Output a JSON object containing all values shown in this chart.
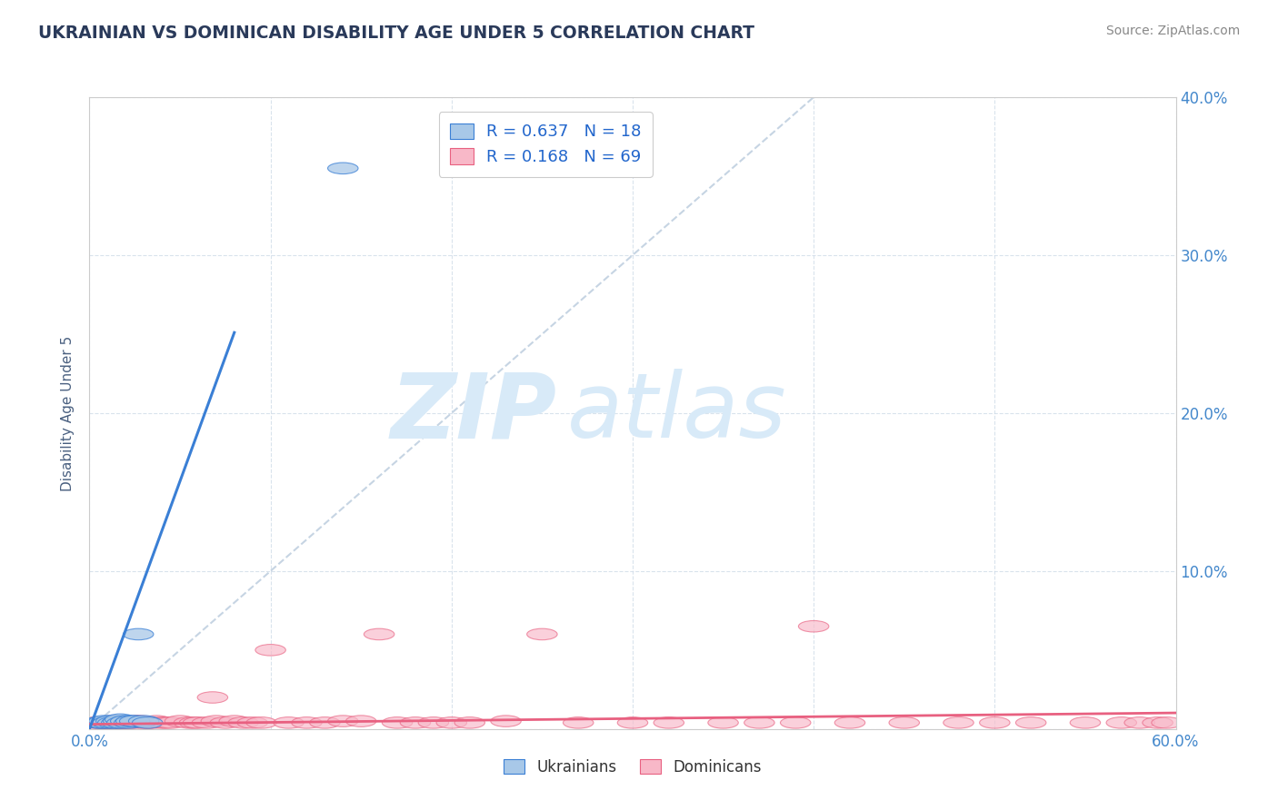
{
  "title": "UKRAINIAN VS DOMINICAN DISABILITY AGE UNDER 5 CORRELATION CHART",
  "source_text": "Source: ZipAtlas.com",
  "ylabel": "Disability Age Under 5",
  "xlim": [
    0.0,
    0.6
  ],
  "ylim": [
    0.0,
    0.4
  ],
  "xticks": [
    0.0,
    0.1,
    0.2,
    0.3,
    0.4,
    0.5,
    0.6
  ],
  "yticks": [
    0.0,
    0.1,
    0.2,
    0.3,
    0.4
  ],
  "xticklabels": [
    "0.0%",
    "",
    "",
    "",
    "",
    "",
    "60.0%"
  ],
  "yticklabels_right": [
    "",
    "10.0%",
    "20.0%",
    "30.0%",
    "40.0%"
  ],
  "ukrainian_color": "#a8c8e8",
  "dominican_color": "#f8b8c8",
  "ukr_line_color": "#3a7fd5",
  "dom_line_color": "#e86080",
  "ref_line_color": "#c0d0e0",
  "ukr_R": 0.637,
  "ukr_N": 18,
  "dom_R": 0.168,
  "dom_N": 69,
  "watermark_zip": "ZIP",
  "watermark_atlas": "atlas",
  "watermark_color": "#d8eaf8",
  "title_color": "#2a3a5a",
  "axis_label_color": "#4a6080",
  "tick_color_x": "#4488cc",
  "tick_color_y": "#4488cc",
  "legend_R_color": "#2266cc",
  "grid_color": "#d0dce8",
  "ukr_points_x": [
    0.005,
    0.007,
    0.008,
    0.01,
    0.012,
    0.013,
    0.015,
    0.016,
    0.017,
    0.018,
    0.02,
    0.022,
    0.023,
    0.025,
    0.027,
    0.03,
    0.032,
    0.14
  ],
  "ukr_points_y": [
    0.004,
    0.004,
    0.005,
    0.004,
    0.005,
    0.004,
    0.004,
    0.005,
    0.006,
    0.004,
    0.005,
    0.004,
    0.005,
    0.005,
    0.06,
    0.005,
    0.004,
    0.355
  ],
  "dom_points_x": [
    0.003,
    0.005,
    0.007,
    0.008,
    0.01,
    0.01,
    0.012,
    0.013,
    0.015,
    0.016,
    0.017,
    0.018,
    0.02,
    0.022,
    0.023,
    0.025,
    0.027,
    0.028,
    0.03,
    0.032,
    0.033,
    0.035,
    0.037,
    0.04,
    0.042,
    0.045,
    0.05,
    0.055,
    0.058,
    0.06,
    0.065,
    0.068,
    0.07,
    0.075,
    0.08,
    0.085,
    0.09,
    0.095,
    0.1,
    0.11,
    0.12,
    0.13,
    0.14,
    0.15,
    0.16,
    0.17,
    0.18,
    0.19,
    0.2,
    0.21,
    0.23,
    0.25,
    0.27,
    0.3,
    0.32,
    0.35,
    0.37,
    0.39,
    0.4,
    0.42,
    0.45,
    0.48,
    0.5,
    0.52,
    0.55,
    0.57,
    0.58,
    0.59,
    0.595
  ],
  "dom_points_y": [
    0.004,
    0.004,
    0.004,
    0.004,
    0.004,
    0.004,
    0.004,
    0.005,
    0.004,
    0.004,
    0.004,
    0.004,
    0.004,
    0.004,
    0.004,
    0.005,
    0.004,
    0.005,
    0.004,
    0.004,
    0.004,
    0.004,
    0.005,
    0.004,
    0.004,
    0.004,
    0.005,
    0.004,
    0.004,
    0.004,
    0.004,
    0.02,
    0.005,
    0.004,
    0.005,
    0.004,
    0.004,
    0.004,
    0.05,
    0.004,
    0.004,
    0.004,
    0.005,
    0.005,
    0.06,
    0.004,
    0.004,
    0.004,
    0.004,
    0.004,
    0.005,
    0.06,
    0.004,
    0.004,
    0.004,
    0.004,
    0.004,
    0.004,
    0.065,
    0.004,
    0.004,
    0.004,
    0.004,
    0.004,
    0.004,
    0.004,
    0.004,
    0.004,
    0.004
  ]
}
